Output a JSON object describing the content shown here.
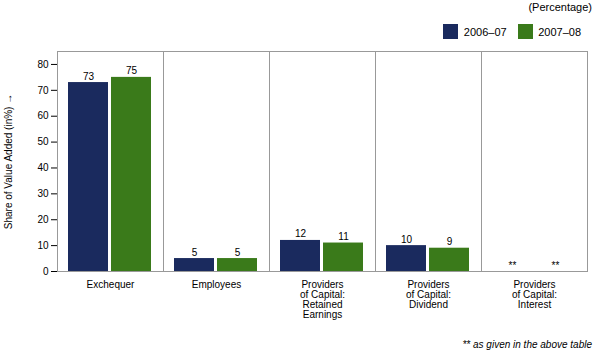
{
  "chart_data": {
    "type": "bar",
    "categories": [
      "Exchequer",
      "Employees",
      "Providers\nof Capital:\nRetained\nEarnings",
      "Providers\nof Capital:\nDividend",
      "Providers\nof Capital:\nInterest"
    ],
    "series": [
      {
        "name": "2006–07",
        "color": "#1a2a5e",
        "values": [
          73,
          5,
          12,
          10,
          null
        ],
        "value_labels": [
          "73",
          "5",
          "12",
          "10",
          "**"
        ]
      },
      {
        "name": "2007–08",
        "color": "#3a7a1a",
        "values": [
          75,
          5,
          11,
          9,
          null
        ],
        "value_labels": [
          "75",
          "5",
          "11",
          "9",
          "**"
        ]
      }
    ],
    "ylabel": "Share of Value Added (in%)",
    "ylim": [
      0,
      85
    ],
    "yticks": [
      0,
      10,
      20,
      30,
      40,
      50,
      60,
      70,
      80
    ],
    "grid": false,
    "legend": "upper right",
    "data_labels": true,
    "annotations": [
      "(Percentage)",
      "** as given in the above table"
    ]
  }
}
